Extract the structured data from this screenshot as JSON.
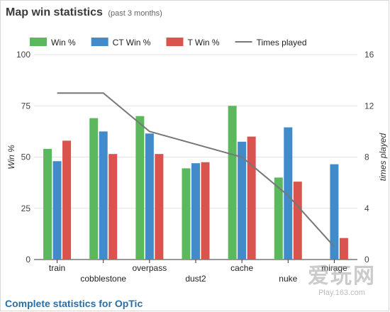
{
  "widget": {
    "title": "Map win statistics",
    "subtitle": "(past 3 months)",
    "footer_link": "Complete statistics for OpTic"
  },
  "watermark": {
    "main": "爱玩网",
    "sub": "Play.163.com"
  },
  "chart_data": {
    "type": "bar",
    "categories": [
      "train",
      "cobblestone",
      "overpass",
      "dust2",
      "cache",
      "nuke",
      "mirage"
    ],
    "series": [
      {
        "name": "Win %",
        "type": "bar",
        "axis": "left",
        "color": "#5cb85c",
        "values": [
          54,
          69,
          70,
          44.5,
          75,
          40,
          0
        ]
      },
      {
        "name": "CT Win %",
        "type": "bar",
        "axis": "left",
        "color": "#428bca",
        "values": [
          48,
          62.5,
          61.5,
          47,
          57.5,
          64.5,
          46.5
        ]
      },
      {
        "name": "T Win %",
        "type": "bar",
        "axis": "left",
        "color": "#d9534f",
        "values": [
          58,
          51.5,
          51.5,
          47.5,
          60,
          38,
          10.5
        ]
      },
      {
        "name": "Times played",
        "type": "line",
        "axis": "right",
        "color": "#777777",
        "values": [
          13,
          13,
          10,
          9,
          8,
          5,
          1
        ]
      }
    ],
    "ylabel": "Win %",
    "ylabel_right": "times played",
    "ylim": [
      0,
      100
    ],
    "ylim_right": [
      0,
      16
    ],
    "yticks": [
      0,
      25,
      50,
      75,
      100
    ],
    "yticks_right": [
      0,
      4,
      8,
      12,
      16
    ],
    "legend_position": "top",
    "grid": true
  }
}
